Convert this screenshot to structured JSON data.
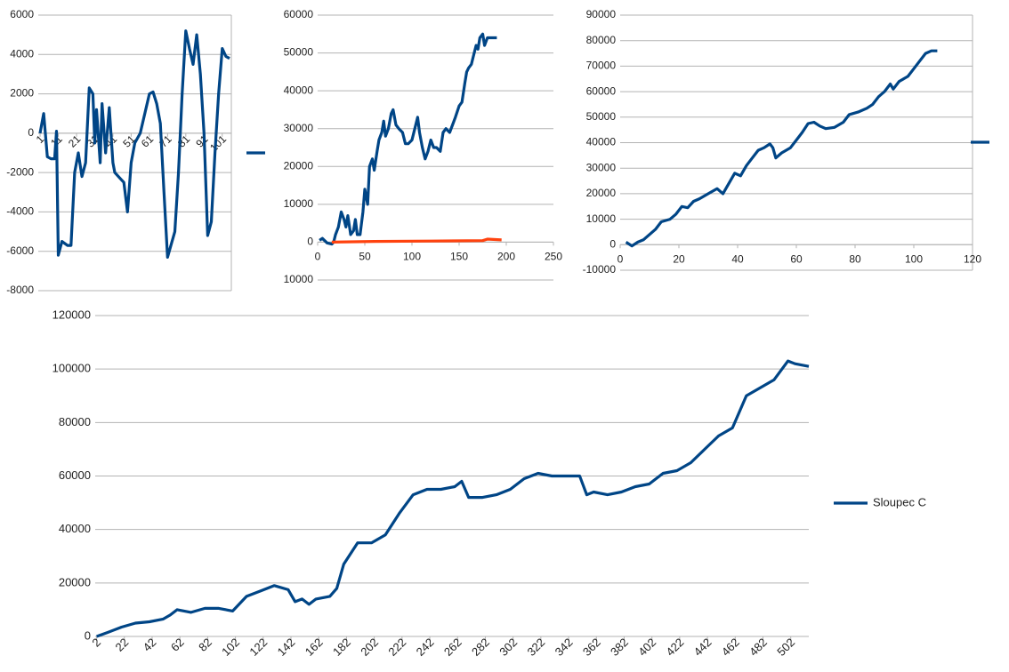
{
  "chart_data": [
    {
      "type": "line",
      "xlim": [
        0,
        106
      ],
      "xticks": [
        1,
        11,
        21,
        31,
        41,
        51,
        61,
        71,
        81,
        91,
        101
      ],
      "ylim": [
        -8000,
        6000
      ],
      "yticks": [
        -8000,
        -6000,
        -4000,
        -2000,
        0,
        2000,
        4000,
        6000
      ],
      "grid": true,
      "legend": "right",
      "series": [
        {
          "color": "#004586",
          "x": [
            1,
            3,
            5,
            7,
            9,
            10,
            11,
            13,
            16,
            18,
            20,
            22,
            24,
            26,
            28,
            30,
            31,
            32,
            34,
            35,
            37,
            39,
            41,
            42,
            45,
            47,
            49,
            51,
            53,
            56,
            61,
            63,
            65,
            67,
            69,
            71,
            75,
            77,
            79,
            81,
            83,
            85,
            87,
            89,
            91,
            93,
            95,
            97,
            99,
            101,
            103,
            105
          ],
          "values": [
            0,
            1000,
            -1200,
            -1300,
            -1300,
            100,
            -6200,
            -5500,
            -5700,
            -5700,
            -2000,
            -1000,
            -2200,
            -1500,
            2300,
            2000,
            -500,
            1200,
            -1500,
            1500,
            -1000,
            1300,
            -1500,
            -2000,
            -2300,
            -2500,
            -4000,
            -1500,
            -500,
            0,
            2000,
            2100,
            1500,
            500,
            -3000,
            -6300,
            -5000,
            -2000,
            2000,
            5200,
            4300,
            3500,
            5000,
            3000,
            0,
            -5200,
            -4500,
            -1000,
            2000,
            4300,
            3900,
            3800
          ]
        }
      ]
    },
    {
      "type": "line",
      "xlim": [
        0,
        250
      ],
      "xticks": [
        0,
        50,
        100,
        150,
        200,
        250
      ],
      "ylim": [
        -10000,
        60000
      ],
      "yticks": [
        {
          "value": -10000,
          "label": "10000"
        },
        0,
        10000,
        20000,
        30000,
        40000,
        50000,
        60000
      ],
      "grid": true,
      "series": [
        {
          "color": "#004586",
          "x": [
            2,
            5,
            10,
            15,
            17,
            19,
            22,
            25,
            28,
            30,
            32,
            35,
            38,
            40,
            42,
            45,
            48,
            50,
            53,
            55,
            58,
            60,
            63,
            65,
            68,
            70,
            72,
            75,
            78,
            80,
            83,
            86,
            90,
            93,
            96,
            100,
            103,
            106,
            108,
            111,
            114,
            117,
            120,
            123,
            126,
            130,
            133,
            136,
            140,
            143,
            146,
            150,
            153,
            156,
            158,
            160,
            163,
            165,
            168,
            170,
            172,
            175,
            177,
            180,
            183,
            190
          ],
          "values": [
            500,
            1000,
            -200,
            -500,
            0,
            2000,
            4000,
            8000,
            6000,
            4000,
            7000,
            2000,
            3000,
            6000,
            2000,
            2000,
            8000,
            14000,
            10000,
            20000,
            22000,
            19000,
            24000,
            27000,
            29000,
            32000,
            28000,
            30000,
            34000,
            35000,
            31000,
            30000,
            29000,
            26000,
            26000,
            27000,
            30000,
            33000,
            29000,
            25000,
            22000,
            24000,
            27000,
            25000,
            25000,
            24000,
            29000,
            30000,
            29000,
            31000,
            33000,
            36000,
            37000,
            42000,
            45000,
            46000,
            47000,
            49000,
            52000,
            51000,
            54000,
            55000,
            52000,
            54000,
            54000,
            54000
          ]
        },
        {
          "color": "#ff420e",
          "x": [
            15,
            60,
            120,
            175,
            180,
            195
          ],
          "values": [
            0,
            200,
            300,
            400,
            800,
            600
          ]
        }
      ]
    },
    {
      "type": "line",
      "xlim": [
        0,
        120
      ],
      "xticks": [
        0,
        20,
        40,
        60,
        80,
        100,
        120
      ],
      "ylim": [
        -10000,
        90000
      ],
      "yticks": [
        -10000,
        0,
        10000,
        20000,
        30000,
        40000,
        50000,
        60000,
        70000,
        80000,
        90000
      ],
      "grid": true,
      "legend": "right",
      "series": [
        {
          "color": "#004586",
          "x": [
            2,
            4,
            6,
            8,
            10,
            12,
            14,
            17,
            19,
            21,
            23,
            25,
            27,
            30,
            33,
            35,
            37,
            39,
            41,
            43,
            45,
            47,
            49,
            51,
            52,
            53,
            55,
            58,
            60,
            62,
            64,
            66,
            68,
            70,
            73,
            76,
            78,
            81,
            84,
            86,
            88,
            90,
            92,
            93,
            95,
            98,
            100,
            102,
            104,
            106,
            108
          ],
          "values": [
            1000,
            -500,
            1000,
            2000,
            4000,
            6000,
            9000,
            10000,
            12000,
            15000,
            14500,
            17000,
            18000,
            20000,
            22000,
            20000,
            24000,
            28000,
            27000,
            31000,
            34000,
            37000,
            38000,
            39500,
            38000,
            34000,
            36000,
            38000,
            41000,
            44000,
            47500,
            48000,
            46500,
            45500,
            46000,
            48000,
            51000,
            52000,
            53500,
            55000,
            58000,
            60000,
            63000,
            61000,
            64000,
            66000,
            69000,
            72000,
            75000,
            76000,
            76000
          ]
        }
      ]
    },
    {
      "type": "line",
      "xlim": [
        1,
        515
      ],
      "xticks": [
        2,
        22,
        42,
        62,
        82,
        102,
        122,
        142,
        162,
        182,
        202,
        222,
        242,
        262,
        282,
        302,
        322,
        342,
        362,
        382,
        402,
        422,
        442,
        462,
        482,
        502
      ],
      "ylim": [
        0,
        120000
      ],
      "yticks": [
        0,
        20000,
        40000,
        60000,
        80000,
        100000,
        120000
      ],
      "grid": true,
      "legend": "right",
      "series": [
        {
          "name": "Sloupec C",
          "color": "#004586",
          "x": [
            2,
            10,
            20,
            30,
            40,
            50,
            55,
            60,
            70,
            80,
            90,
            100,
            110,
            120,
            130,
            140,
            145,
            150,
            155,
            160,
            170,
            175,
            180,
            185,
            190,
            200,
            210,
            220,
            230,
            240,
            250,
            260,
            265,
            270,
            280,
            290,
            300,
            310,
            320,
            330,
            340,
            350,
            355,
            360,
            370,
            380,
            390,
            400,
            410,
            420,
            430,
            440,
            450,
            460,
            470,
            480,
            490,
            500,
            505,
            515
          ],
          "values": [
            0,
            1500,
            3500,
            5000,
            5500,
            6500,
            8000,
            10000,
            9000,
            10500,
            10500,
            9500,
            15000,
            17000,
            19000,
            17500,
            13000,
            14000,
            12000,
            14000,
            15000,
            18000,
            27000,
            31000,
            35000,
            35000,
            38000,
            46000,
            53000,
            55000,
            55000,
            56000,
            58000,
            52000,
            52000,
            53000,
            55000,
            59000,
            61000,
            60000,
            60000,
            60000,
            53000,
            54000,
            53000,
            54000,
            56000,
            57000,
            61000,
            62000,
            65000,
            70000,
            75000,
            78000,
            90000,
            93000,
            96000,
            103000,
            102000,
            101000
          ]
        }
      ]
    }
  ]
}
